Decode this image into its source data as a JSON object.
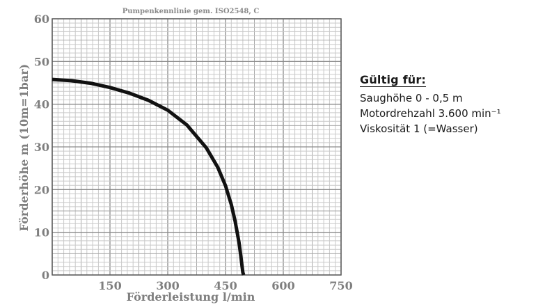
{
  "chart_data": {
    "type": "line",
    "title": "Pumpenkennlinie gem. ISO2548, C",
    "xlabel": "Förderleistung l/min",
    "ylabel": "Förderhöhe m (10m=1bar)",
    "xlim": [
      0,
      750
    ],
    "ylim": [
      0,
      60
    ],
    "x_ticks": [
      "150",
      "300",
      "450",
      "600",
      "750"
    ],
    "y_ticks": [
      "0",
      "10",
      "20",
      "30",
      "40",
      "50",
      "60"
    ],
    "grid": true,
    "series": [
      {
        "color": "#111111",
        "x": [
          0,
          50,
          100,
          150,
          200,
          250,
          300,
          350,
          400,
          430,
          450,
          465,
          475,
          485,
          490,
          493,
          495,
          497
        ],
        "y": [
          45.8,
          45.5,
          44.9,
          43.9,
          42.6,
          40.9,
          38.6,
          35.1,
          29.8,
          25.2,
          20.9,
          16.5,
          12.6,
          7.6,
          4.3,
          2.0,
          0.6,
          0
        ]
      }
    ]
  },
  "notes": {
    "heading": "Gültig für:",
    "lines": [
      "Saughöhe 0 - 0,5 m",
      "Motordrehzahl 3.600 min⁻¹",
      "Viskosität 1 (=Wasser)"
    ]
  }
}
